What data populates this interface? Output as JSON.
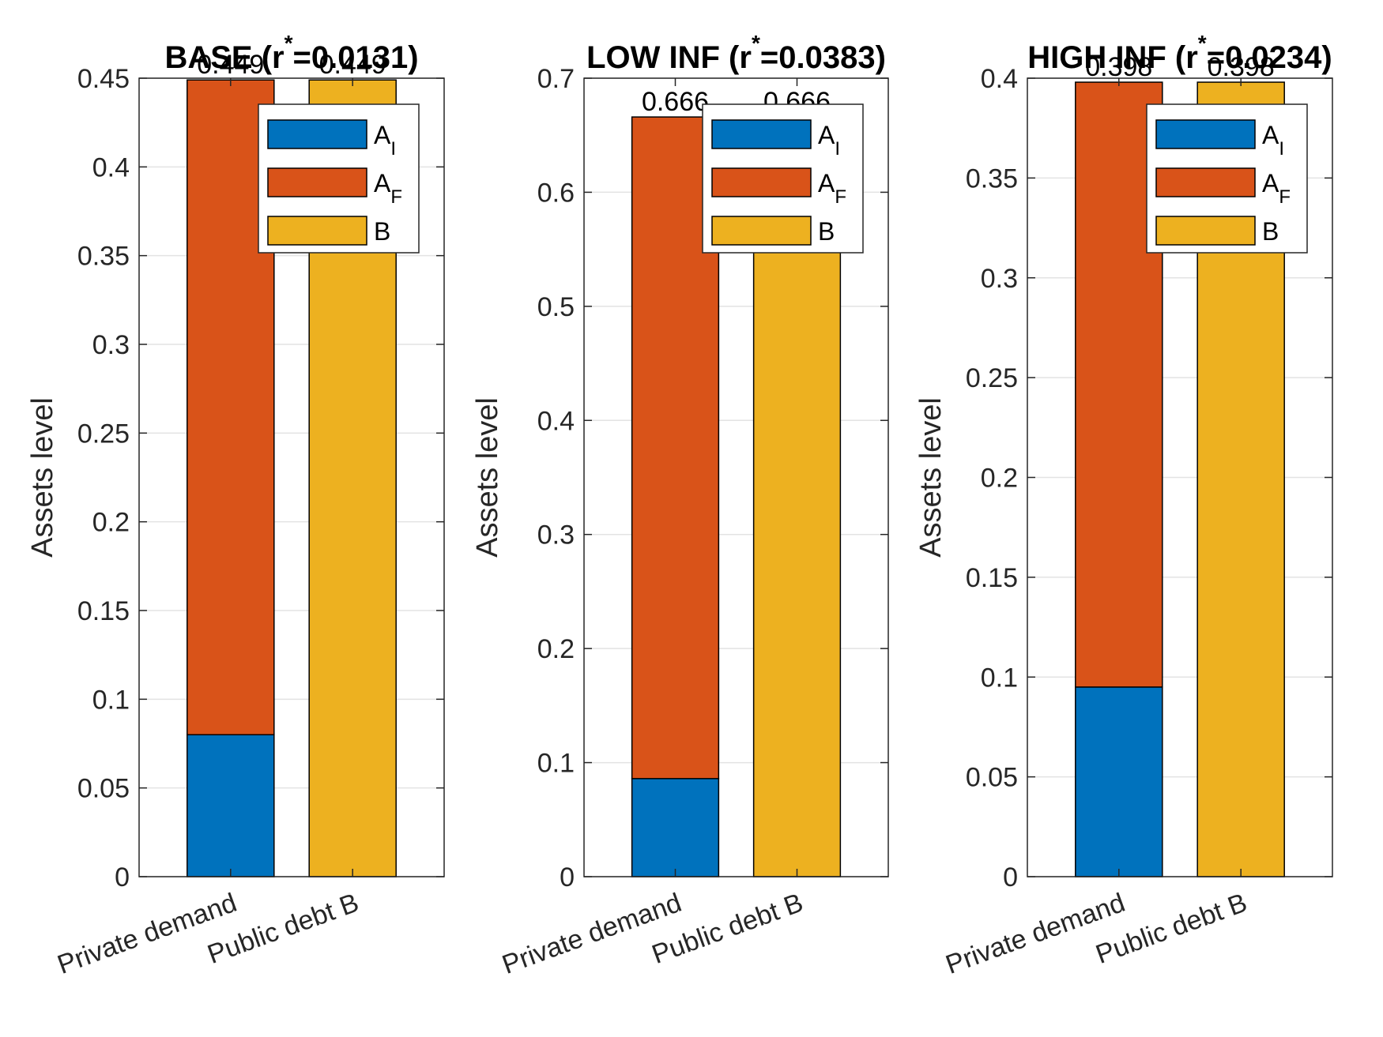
{
  "chart_data": [
    {
      "type": "bar",
      "stacked": true,
      "title": "BASE (r",
      "title_superscript": "*",
      "title_suffix": "=0.0131)",
      "ylabel": "Assets level",
      "categories": [
        "Private demand",
        "Public debt B"
      ],
      "series": [
        {
          "name": "A",
          "name_subscript": "I",
          "color": "#0072BD",
          "values": [
            0.08,
            0
          ]
        },
        {
          "name": "A",
          "name_subscript": "F",
          "color": "#D95319",
          "values": [
            0.369,
            0
          ]
        },
        {
          "name": "B",
          "name_subscript": "",
          "color": "#EDB120",
          "values": [
            0,
            0.449
          ]
        }
      ],
      "totals": [
        "0.449",
        "0.449"
      ],
      "ylim": [
        0,
        0.45
      ],
      "yticks": [
        "0",
        "0.05",
        "0.1",
        "0.15",
        "0.2",
        "0.25",
        "0.3",
        "0.35",
        "0.4",
        "0.45"
      ],
      "grid": true,
      "legend_position": "top-right"
    },
    {
      "type": "bar",
      "stacked": true,
      "title": "LOW INF (r",
      "title_superscript": "*",
      "title_suffix": "=0.0383)",
      "ylabel": "Assets level",
      "categories": [
        "Private demand",
        "Public debt B"
      ],
      "series": [
        {
          "name": "A",
          "name_subscript": "I",
          "color": "#0072BD",
          "values": [
            0.086,
            0
          ]
        },
        {
          "name": "A",
          "name_subscript": "F",
          "color": "#D95319",
          "values": [
            0.58,
            0
          ]
        },
        {
          "name": "B",
          "name_subscript": "",
          "color": "#EDB120",
          "values": [
            0,
            0.666
          ]
        }
      ],
      "totals": [
        "0.666",
        "0.666"
      ],
      "ylim": [
        0,
        0.7
      ],
      "yticks": [
        "0",
        "0.1",
        "0.2",
        "0.3",
        "0.4",
        "0.5",
        "0.6",
        "0.7"
      ],
      "grid": true,
      "legend_position": "top-right"
    },
    {
      "type": "bar",
      "stacked": true,
      "title": "HIGH INF (r",
      "title_superscript": "*",
      "title_suffix": "=0.0234)",
      "ylabel": "Assets level",
      "categories": [
        "Private demand",
        "Public debt B"
      ],
      "series": [
        {
          "name": "A",
          "name_subscript": "I",
          "color": "#0072BD",
          "values": [
            0.095,
            0
          ]
        },
        {
          "name": "A",
          "name_subscript": "F",
          "color": "#D95319",
          "values": [
            0.303,
            0
          ]
        },
        {
          "name": "B",
          "name_subscript": "",
          "color": "#EDB120",
          "values": [
            0,
            0.398
          ]
        }
      ],
      "totals": [
        "0.398",
        "0.398"
      ],
      "ylim": [
        0,
        0.4
      ],
      "yticks": [
        "0",
        "0.05",
        "0.1",
        "0.15",
        "0.2",
        "0.25",
        "0.3",
        "0.35",
        "0.4"
      ],
      "grid": true,
      "legend_position": "top-right"
    }
  ]
}
